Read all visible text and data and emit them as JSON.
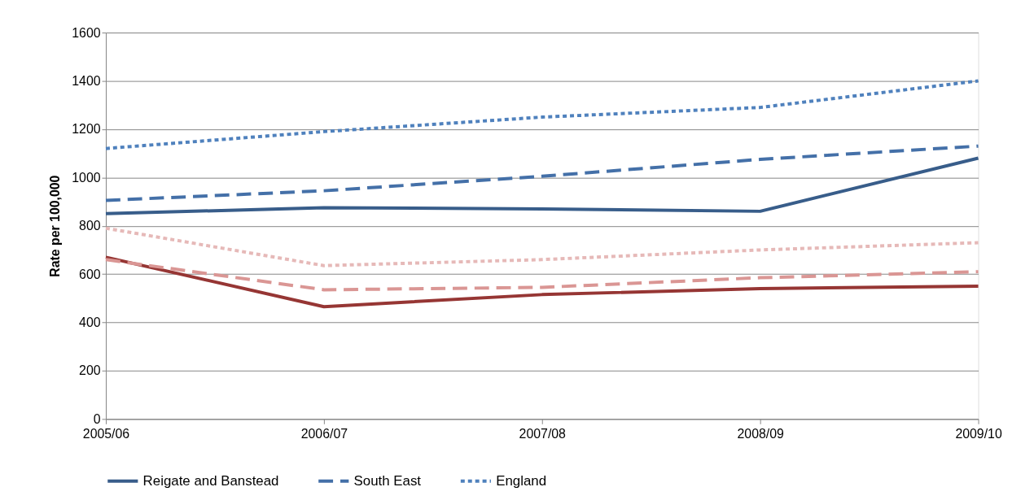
{
  "chart_data": {
    "type": "line",
    "ylabel": "Rate per 100,000",
    "categories": [
      "2005/06",
      "2006/07",
      "2007/08",
      "2008/09",
      "2009/10"
    ],
    "ylim": [
      0,
      1600
    ],
    "yticks": [
      0,
      200,
      400,
      600,
      800,
      1000,
      1200,
      1400,
      1600
    ],
    "grid": "y",
    "legend": "bottom",
    "marker": "none",
    "series": [
      {
        "name": "Reigate and Banstead",
        "color": "#385d8a",
        "line_style": "solid",
        "values": [
          850,
          875,
          870,
          860,
          1080
        ]
      },
      {
        "name": "South East",
        "color": "#4470a8",
        "line_style": "dashed",
        "values": [
          905,
          945,
          1005,
          1075,
          1130
        ]
      },
      {
        "name": "England",
        "color": "#4f81bd",
        "line_style": "dotted",
        "values": [
          1120,
          1190,
          1250,
          1290,
          1400
        ]
      },
      {
        "color": "#963634",
        "line_style": "solid",
        "values": [
          670,
          465,
          515,
          540,
          550
        ]
      },
      {
        "color": "#da9694",
        "line_style": "dashed",
        "values": [
          660,
          535,
          545,
          585,
          610
        ]
      },
      {
        "color": "#e6b9b8",
        "line_style": "dotted",
        "values": [
          790,
          635,
          660,
          700,
          730
        ]
      }
    ]
  }
}
